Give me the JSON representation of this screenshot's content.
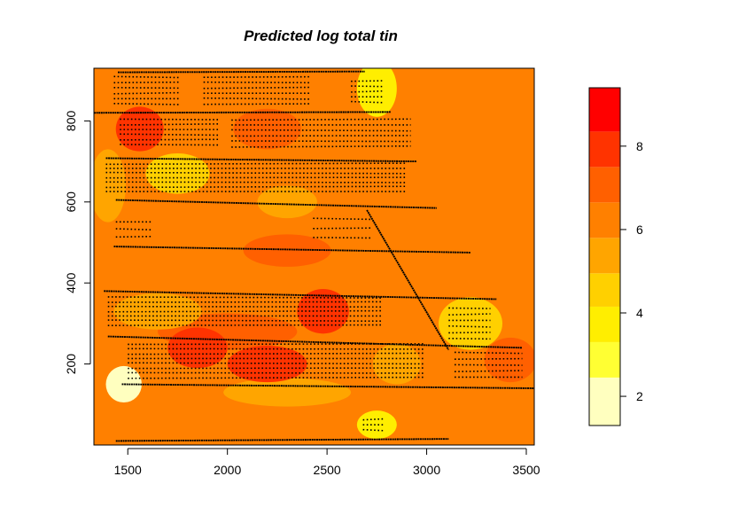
{
  "chart_data": {
    "type": "heatmap",
    "title": "Predicted log total tin",
    "xlabel": "",
    "ylabel": "",
    "xlim": [
      1330,
      3540
    ],
    "ylim": [
      0,
      930
    ],
    "x_ticks": [
      1500,
      2000,
      2500,
      3000,
      3500
    ],
    "y_ticks": [
      200,
      400,
      600,
      800
    ],
    "x_tick_labels": [
      "1500",
      "2000",
      "2500",
      "3000",
      "3500"
    ],
    "y_tick_labels": [
      "200",
      "400",
      "600",
      "800"
    ],
    "background_level": 6.5,
    "legend": {
      "breaks": [
        1.3,
        2.45,
        3.3,
        4.15,
        4.95,
        5.8,
        6.65,
        7.5,
        8.35,
        9.4
      ],
      "colors": [
        "#FFFFBF",
        "#FFFF33",
        "#FFEE00",
        "#FFD000",
        "#FFA500",
        "#FF8000",
        "#FF6000",
        "#FF3300",
        "#FF0000"
      ],
      "ticks": [
        2,
        4,
        6,
        8
      ],
      "tick_labels": [
        "2",
        "4",
        "6",
        "8"
      ]
    },
    "blobs": [
      {
        "x": 1480,
        "y": 150,
        "rx": 90,
        "ry": 45,
        "level": 2.0
      },
      {
        "x": 1400,
        "y": 640,
        "rx": 90,
        "ry": 90,
        "level": 5.4
      },
      {
        "x": 1560,
        "y": 780,
        "rx": 120,
        "ry": 55,
        "level": 8.0
      },
      {
        "x": 1750,
        "y": 670,
        "rx": 160,
        "ry": 50,
        "level": 4.3
      },
      {
        "x": 2200,
        "y": 780,
        "rx": 170,
        "ry": 50,
        "level": 7.2
      },
      {
        "x": 2750,
        "y": 880,
        "rx": 100,
        "ry": 70,
        "level": 3.6
      },
      {
        "x": 2900,
        "y": 740,
        "rx": 160,
        "ry": 70,
        "level": 6.0
      },
      {
        "x": 2480,
        "y": 330,
        "rx": 130,
        "ry": 55,
        "level": 8.0
      },
      {
        "x": 1850,
        "y": 240,
        "rx": 150,
        "ry": 50,
        "level": 7.8
      },
      {
        "x": 2200,
        "y": 200,
        "rx": 200,
        "ry": 45,
        "level": 7.6
      },
      {
        "x": 2000,
        "y": 280,
        "rx": 350,
        "ry": 45,
        "level": 7.0
      },
      {
        "x": 2300,
        "y": 480,
        "rx": 220,
        "ry": 40,
        "level": 7.0
      },
      {
        "x": 3220,
        "y": 300,
        "rx": 160,
        "ry": 65,
        "level": 4.6
      },
      {
        "x": 3420,
        "y": 210,
        "rx": 130,
        "ry": 55,
        "level": 7.4
      },
      {
        "x": 2750,
        "y": 50,
        "rx": 100,
        "ry": 35,
        "level": 4.0
      },
      {
        "x": 1750,
        "y": 60,
        "rx": 250,
        "ry": 50,
        "level": 6.0
      },
      {
        "x": 3300,
        "y": 700,
        "rx": 250,
        "ry": 200,
        "level": 6.0
      },
      {
        "x": 3350,
        "y": 450,
        "rx": 180,
        "ry": 100,
        "level": 6.0
      },
      {
        "x": 2300,
        "y": 600,
        "rx": 150,
        "ry": 40,
        "level": 5.4
      },
      {
        "x": 1650,
        "y": 330,
        "rx": 220,
        "ry": 45,
        "level": 5.4
      },
      {
        "x": 2300,
        "y": 130,
        "rx": 320,
        "ry": 35,
        "level": 5.4
      },
      {
        "x": 2850,
        "y": 200,
        "rx": 120,
        "ry": 50,
        "level": 5.4
      }
    ],
    "sample_lines": [
      {
        "from": [
          1330,
          820
        ],
        "to": [
          2820,
          822
        ]
      },
      {
        "from": [
          1450,
          920
        ],
        "to": [
          2690,
          922
        ]
      },
      {
        "from": [
          1390,
          708
        ],
        "to": [
          2950,
          700
        ]
      },
      {
        "from": [
          1440,
          605
        ],
        "to": [
          3050,
          585
        ]
      },
      {
        "from": [
          1430,
          490
        ],
        "to": [
          3220,
          475
        ]
      },
      {
        "from": [
          1380,
          380
        ],
        "to": [
          3350,
          360
        ]
      },
      {
        "from": [
          1400,
          268
        ],
        "to": [
          3480,
          240
        ]
      },
      {
        "from": [
          1470,
          150
        ],
        "to": [
          3540,
          140
        ]
      },
      {
        "from": [
          1440,
          10
        ],
        "to": [
          3110,
          15
        ]
      },
      {
        "from": [
          2700,
          580
        ],
        "to": [
          3110,
          235
        ]
      }
    ],
    "sample_clusters": [
      {
        "x": [
          1430,
          1760
        ],
        "y": [
          835,
          915
        ],
        "rows": 6
      },
      {
        "x": [
          1880,
          2420
        ],
        "y": [
          835,
          915
        ],
        "rows": 6
      },
      {
        "x": [
          1460,
          1960
        ],
        "y": [
          735,
          810
        ],
        "rows": 6
      },
      {
        "x": [
          2020,
          2920
        ],
        "y": [
          730,
          810
        ],
        "rows": 6
      },
      {
        "x": [
          1390,
          2900
        ],
        "y": [
          620,
          700
        ],
        "rows": 7
      },
      {
        "x": [
          2620,
          2780
        ],
        "y": [
          840,
          905
        ],
        "rows": 5
      },
      {
        "x": [
          1400,
          2780
        ],
        "y": [
          290,
          370
        ],
        "rows": 7
      },
      {
        "x": [
          3110,
          3320
        ],
        "y": [
          255,
          345
        ],
        "rows": 6
      },
      {
        "x": [
          1500,
          2990
        ],
        "y": [
          160,
          255
        ],
        "rows": 8
      },
      {
        "x": [
          3140,
          3480
        ],
        "y": [
          160,
          235
        ],
        "rows": 5
      },
      {
        "x": [
          2680,
          2790
        ],
        "y": [
          30,
          70
        ],
        "rows": 3
      },
      {
        "x": [
          1440,
          1620
        ],
        "y": [
          505,
          560
        ],
        "rows": 3
      },
      {
        "x": [
          2430,
          2720
        ],
        "y": [
          500,
          570
        ],
        "rows": 3
      }
    ]
  }
}
